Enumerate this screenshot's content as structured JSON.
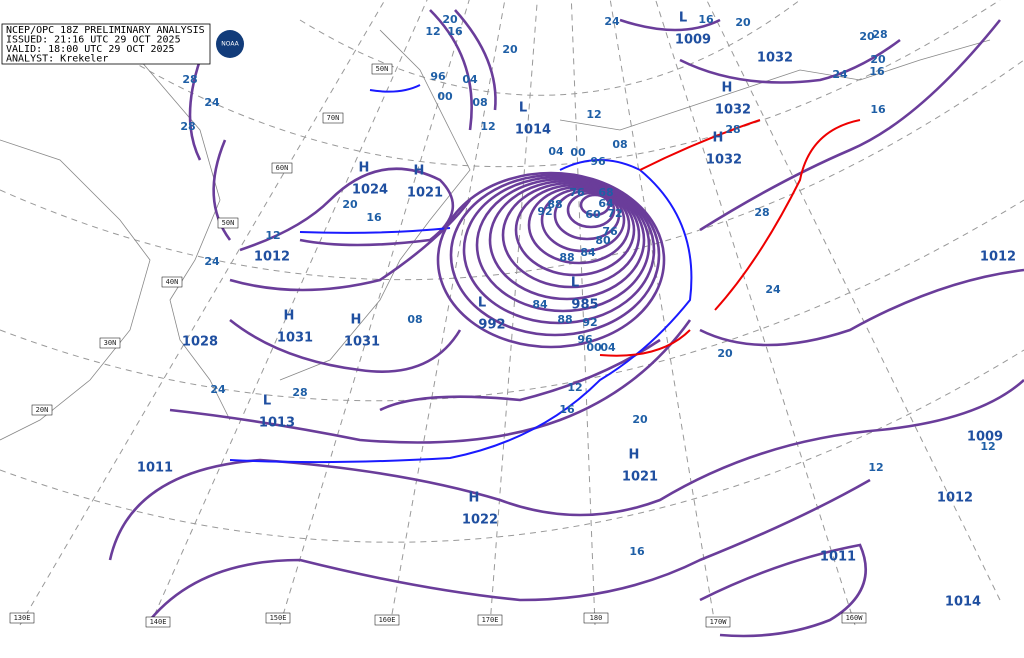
{
  "header": {
    "lines": [
      "NCEP/OPC 18Z PRELIMINARY ANALYSIS",
      "ISSUED: 21:16 UTC 29 OCT 2025",
      "VALID: 18:00 UTC 29 OCT 2025",
      "ANALYST: Krekeler"
    ],
    "logo": "NOAA"
  },
  "centers": [
    {
      "symbol": "H",
      "pressure": "1024"
    },
    {
      "symbol": "H",
      "pressure": "1021"
    },
    {
      "symbol": "H",
      "pressure": "1031"
    },
    {
      "symbol": "H",
      "pressure": "1031"
    },
    {
      "pressure": "1028"
    },
    {
      "pressure": "1012"
    },
    {
      "symbol": "L",
      "pressure": "992"
    },
    {
      "symbol": "L",
      "pressure": "985"
    },
    {
      "symbol": "L",
      "pressure": "1014"
    },
    {
      "symbol": "H",
      "pressure": "1032"
    },
    {
      "symbol": "H",
      "pressure": "1032"
    },
    {
      "symbol": "L",
      "pressure": "1009"
    },
    {
      "pressure": "1032"
    },
    {
      "symbol": "L",
      "pressure": "1013"
    },
    {
      "pressure": "1011"
    },
    {
      "symbol": "H",
      "pressure": "1021"
    },
    {
      "symbol": "H",
      "pressure": "1022"
    },
    {
      "pressure": "1012"
    },
    {
      "pressure": "1009"
    },
    {
      "pressure": "1012"
    },
    {
      "pressure": "1011"
    },
    {
      "pressure": "1014"
    }
  ],
  "isobar_labels": [
    "28",
    "24",
    "28",
    "24",
    "20",
    "16",
    "12",
    "08",
    "12",
    "16",
    "20",
    "20",
    "04",
    "00",
    "96",
    "08",
    "12",
    "12",
    "04",
    "00",
    "96",
    "08",
    "76",
    "68",
    "64",
    "60",
    "72",
    "76",
    "80",
    "84",
    "88",
    "92",
    "88",
    "84",
    "88",
    "92",
    "96",
    "00",
    "04",
    "12",
    "16",
    "20",
    "24",
    "28",
    "28",
    "28",
    "24",
    "20",
    "12",
    "16",
    "12",
    "20",
    "16",
    "24",
    "16",
    "28",
    "20",
    "16",
    "24",
    "20"
  ],
  "grid_labels": {
    "latitudes": [
      "50N",
      "70N",
      "60N",
      "50N",
      "40N",
      "30N",
      "20N"
    ],
    "longitudes": [
      "130E",
      "140E",
      "150E",
      "160E",
      "170E",
      "180",
      "170W",
      "160W"
    ]
  }
}
